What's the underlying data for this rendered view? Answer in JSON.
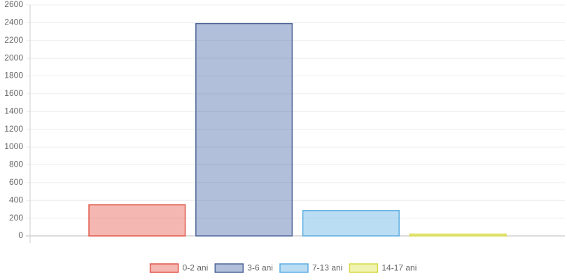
{
  "chart_data": {
    "type": "bar",
    "categories": [
      null
    ],
    "series": [
      {
        "name": "0-2 ani",
        "color": "#e0574a",
        "fill": "rgba(231,76,60,0.4)",
        "values": [
          350
        ]
      },
      {
        "name": "3-6 ani",
        "color": "#4d6597",
        "fill": "rgba(52,86,157,0.38)",
        "values": [
          2390
        ]
      },
      {
        "name": "7-13 ani",
        "color": "#5dade2",
        "fill": "rgba(93,173,226,0.42)",
        "values": [
          285
        ]
      },
      {
        "name": "14-17 ani",
        "color": "#d6d846",
        "fill": "rgba(225,230,80,0.45)",
        "values": [
          20
        ]
      }
    ],
    "ylim": [
      0,
      2600
    ],
    "yticks": [
      0,
      200,
      400,
      600,
      800,
      1000,
      1200,
      1400,
      1600,
      1800,
      2000,
      2200,
      2400,
      2600
    ],
    "grid": true,
    "legend": "bottom"
  }
}
